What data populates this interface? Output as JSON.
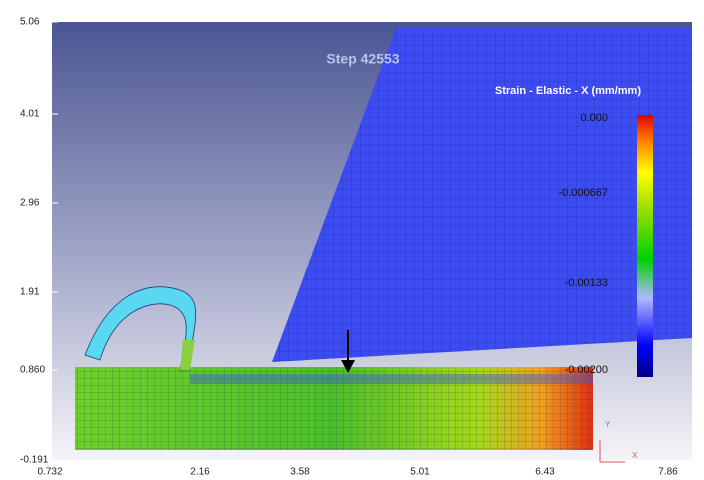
{
  "viewport": {
    "step": "Step 42553",
    "legend": {
      "title": "Strain - Elastic - X (mm/mm)",
      "labels": [
        "0.000",
        "-0.000667",
        "-0.00133",
        "-0.00200"
      ]
    },
    "y_axis": [
      "5.06",
      "4.01",
      "2.96",
      "1.91",
      "0.860",
      "-0.191"
    ],
    "x_axis": [
      "0.732",
      "2.16",
      "3.58",
      "5.01",
      "6.43",
      "7.86"
    ],
    "triad": [
      "Y",
      "X"
    ]
  }
}
